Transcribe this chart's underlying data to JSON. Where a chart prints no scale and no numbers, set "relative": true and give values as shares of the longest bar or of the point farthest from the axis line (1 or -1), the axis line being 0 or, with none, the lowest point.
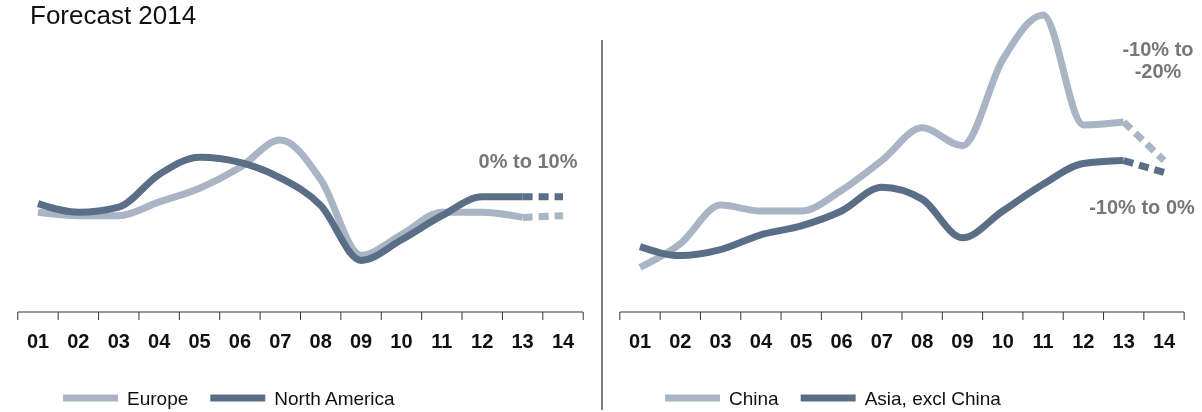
{
  "chart_data": [
    {
      "type": "line",
      "title": "Forecast 2014",
      "relative": true,
      "categories": [
        "01",
        "02",
        "03",
        "04",
        "05",
        "06",
        "07",
        "08",
        "09",
        "10",
        "11",
        "12",
        "13",
        "14"
      ],
      "legend": "bottom",
      "grid": false,
      "line_style": "solid",
      "series": [
        {
          "name": "Europe",
          "color": "#a9b5c4",
          "values": [
            0.58,
            0.56,
            0.56,
            0.64,
            0.72,
            0.84,
            1.0,
            0.77,
            0.33,
            0.45,
            0.58,
            0.58,
            0.55,
            null
          ]
        },
        {
          "name": "North America",
          "color": "#5b6e87",
          "values": [
            0.63,
            0.58,
            0.61,
            0.8,
            0.9,
            0.87,
            0.78,
            0.62,
            0.3,
            0.42,
            0.56,
            0.67,
            0.67,
            null
          ]
        },
        {
          "color": "#a9b5c4",
          "line_style": "dashed",
          "values": [
            null,
            null,
            null,
            null,
            null,
            null,
            null,
            null,
            null,
            null,
            null,
            null,
            0.55,
            0.56
          ]
        },
        {
          "color": "#5b6e87",
          "line_style": "dashed",
          "values": [
            null,
            null,
            null,
            null,
            null,
            null,
            null,
            null,
            null,
            null,
            null,
            null,
            0.67,
            0.67
          ]
        }
      ],
      "annotations": [
        "0% to 10%"
      ]
    },
    {
      "type": "line",
      "relative": true,
      "categories": [
        "01",
        "02",
        "03",
        "04",
        "05",
        "06",
        "07",
        "08",
        "09",
        "10",
        "11",
        "12",
        "13",
        "14"
      ],
      "legend": "bottom",
      "grid": false,
      "line_style": "solid",
      "series": [
        {
          "name": "China",
          "color": "#a9b5c4",
          "values": [
            0.15,
            0.23,
            0.36,
            0.34,
            0.34,
            0.41,
            0.51,
            0.62,
            0.56,
            0.85,
            1.0,
            0.63,
            0.64,
            null
          ]
        },
        {
          "name": "Asia, excl China",
          "color": "#5b6e87",
          "values": [
            0.22,
            0.19,
            0.21,
            0.26,
            0.29,
            0.34,
            0.42,
            0.38,
            0.25,
            0.34,
            0.43,
            0.5,
            0.51,
            null
          ]
        },
        {
          "color": "#a9b5c4",
          "line_style": "dashed",
          "values": [
            null,
            null,
            null,
            null,
            null,
            null,
            null,
            null,
            null,
            null,
            null,
            null,
            0.64,
            0.51
          ]
        },
        {
          "color": "#5b6e87",
          "line_style": "dashed",
          "values": [
            null,
            null,
            null,
            null,
            null,
            null,
            null,
            null,
            null,
            null,
            null,
            null,
            0.51,
            0.47
          ]
        }
      ],
      "annotations": [
        "-10% to -20%",
        "-10% to 0%"
      ]
    }
  ]
}
